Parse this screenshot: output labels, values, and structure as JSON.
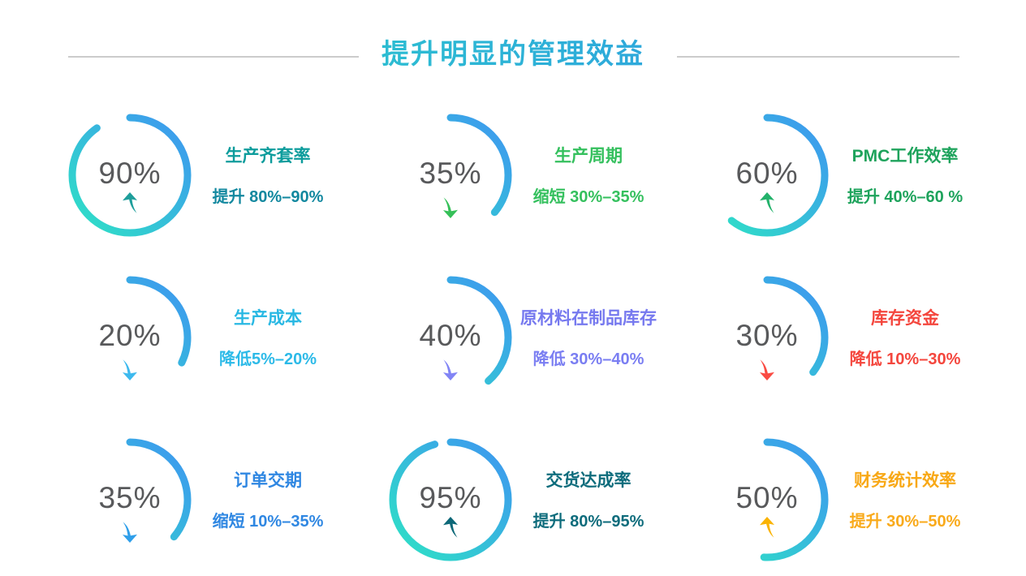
{
  "header": {
    "title": "提升明显的管理效益",
    "title_gradient": [
      "#2BD9C5",
      "#2F8CE8"
    ]
  },
  "chart_data": {
    "type": "gauge",
    "title": "提升明显的管理效益",
    "layout": "3x3-grid",
    "style": {
      "ring_gradient": [
        "#3E95F1",
        "#2EE2C5"
      ],
      "value_color": "#58595B",
      "divider_color": "#CCCCCC",
      "background": "#FFFFFF"
    },
    "items": [
      {
        "value": "90%",
        "pct": 90,
        "trend": "up",
        "arc_sweep_deg": 325,
        "title": "生产齐套率",
        "title_color": "#0D9C9C",
        "desc": "提升 80%–90%",
        "desc_color": "#12889F",
        "arrow_color": "#1E9E9B"
      },
      {
        "value": "35%",
        "pct": 35,
        "trend": "down",
        "arc_sweep_deg": 130,
        "title": "生产周期",
        "title_color": "#35C05E",
        "desc": "缩短 30%–35%",
        "desc_color": "#35C05E",
        "arrow_color": "#35C058"
      },
      {
        "value": "60%",
        "pct": 60,
        "trend": "up",
        "arc_sweep_deg": 218,
        "title": "PMC工作效率",
        "title_color": "#1EA35C",
        "desc": "提升 40%–60 %",
        "desc_color": "#1EA35C",
        "arrow_color": "#23B26B"
      },
      {
        "value": "20%",
        "pct": 20,
        "trend": "down",
        "arc_sweep_deg": 116,
        "title": "生产成本",
        "title_color": "#29B8E3",
        "desc": "降低5%–20%",
        "desc_color": "#2CBAE8",
        "arrow_color": "#3DB9EE"
      },
      {
        "value": "40%",
        "pct": 40,
        "trend": "down",
        "arc_sweep_deg": 139,
        "title": "原材料在制品库存",
        "title_color": "#7679EF",
        "desc": "降低 30%–40%",
        "desc_color": "#7A7EF2",
        "arrow_color": "#8184F5"
      },
      {
        "value": "30%",
        "pct": 30,
        "trend": "down",
        "arc_sweep_deg": 127,
        "title": "库存资金",
        "title_color": "#F4463D",
        "desc": "降低 10%–30%",
        "desc_color": "#F4463D",
        "arrow_color": "#FA4B43"
      },
      {
        "value": "35%",
        "pct": 35,
        "trend": "down",
        "arc_sweep_deg": 130,
        "title": "订单交期",
        "title_color": "#2F87E2",
        "desc": "缩短 10%–35%",
        "desc_color": "#2F87E2",
        "arrow_color": "#2F9FEA"
      },
      {
        "value": "95%",
        "pct": 95,
        "trend": "up",
        "arc_sweep_deg": 344,
        "title": "交货达成率",
        "title_color": "#0E6C7C",
        "desc": "提升 80%–95%",
        "desc_color": "#0E6C7C",
        "arrow_color": "#0D6878"
      },
      {
        "value": "50%",
        "pct": 50,
        "trend": "up",
        "arc_sweep_deg": 183,
        "title": "财务统计效率",
        "title_color": "#F8A816",
        "desc": "提升 30%–50%",
        "desc_color": "#F9AA1B",
        "arrow_color": "#FAB303"
      }
    ]
  }
}
